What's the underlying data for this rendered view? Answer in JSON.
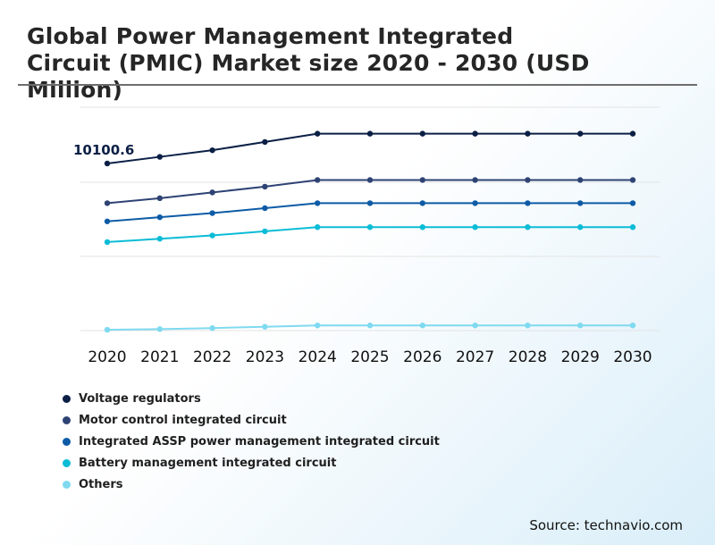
{
  "title": "Global Power Management Integrated Circuit (PMIC) Market size 2020 - 2030 (USD Million)",
  "source": "Source: technavio.com",
  "chart_data": {
    "type": "line",
    "title": "Global Power Management Integrated Circuit (PMIC) Market size 2020 - 2030 (USD Million)",
    "xlabel": "",
    "ylabel": "",
    "x": [
      "2020",
      "2021",
      "2022",
      "2023",
      "2024",
      "2025",
      "2026",
      "2027",
      "2028",
      "2029",
      "2030"
    ],
    "ylim": [
      0,
      13500
    ],
    "grid": true,
    "legend_position": "bottom-left",
    "annotations": [
      {
        "series": "Voltage regulators",
        "x": "2020",
        "text": "10100.6"
      }
    ],
    "series": [
      {
        "name": "Voltage regulators",
        "color": "#0b1f45",
        "values": [
          10100.6,
          10500,
          10900,
          11400,
          11900,
          11900,
          11900,
          11900,
          11900,
          11900,
          11900
        ]
      },
      {
        "name": "Motor control integrated circuit",
        "color": "#2e4374",
        "values": [
          7700,
          8000,
          8350,
          8700,
          9100,
          9100,
          9100,
          9100,
          9100,
          9100,
          9100
        ]
      },
      {
        "name": "Integrated ASSP power management integrated circuit",
        "color": "#0d5ba6",
        "values": [
          6600,
          6850,
          7100,
          7400,
          7700,
          7700,
          7700,
          7700,
          7700,
          7700,
          7700
        ]
      },
      {
        "name": "Battery management integrated circuit",
        "color": "#0bbcd6",
        "values": [
          5350,
          5550,
          5750,
          6000,
          6250,
          6250,
          6250,
          6250,
          6250,
          6250,
          6250
        ]
      },
      {
        "name": "Others",
        "color": "#7fdaf0",
        "values": [
          50,
          90,
          150,
          230,
          310,
          310,
          310,
          310,
          310,
          310,
          310
        ]
      }
    ]
  }
}
